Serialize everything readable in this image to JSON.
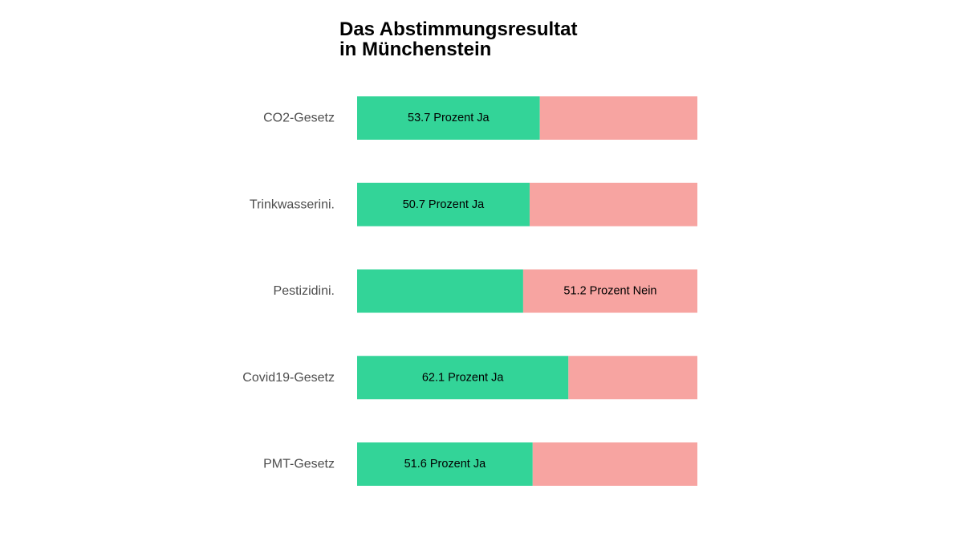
{
  "chart_data": {
    "type": "bar",
    "orientation": "horizontal",
    "stacked": true,
    "normalized": true,
    "title": [
      "Das Abstimmungsresultat",
      "in Münchenstein"
    ],
    "categories": [
      "CO2-Gesetz",
      "Trinkwasserini.",
      "Pestizidini.",
      "Covid19-Gesetz",
      "PMT-Gesetz"
    ],
    "series": [
      {
        "values": [
          53.7,
          50.7,
          48.8,
          62.1,
          51.6
        ],
        "color": "#33d498"
      },
      {
        "values": [
          46.3,
          49.3,
          51.2,
          37.9,
          48.4
        ],
        "color": "#f7a4a1"
      }
    ],
    "labels": [
      {
        "series": 0,
        "text": "53.7 Prozent Ja"
      },
      {
        "series": 0,
        "text": "50.7 Prozent Ja"
      },
      {
        "series": 1,
        "text": "51.2 Prozent Nein"
      },
      {
        "series": 0,
        "text": "62.1 Prozent Ja"
      },
      {
        "series": 0,
        "text": "51.6 Prozent Ja"
      }
    ],
    "xlim": [
      0,
      100
    ],
    "grid": false,
    "legend": "none"
  }
}
